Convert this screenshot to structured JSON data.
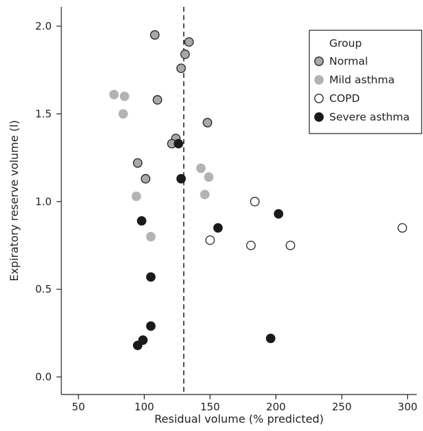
{
  "chart_data": {
    "type": "scatter",
    "title": "",
    "xlabel": "Residual volume (% predicted)",
    "ylabel": "Expiratory reserve volume (l)",
    "xlim": [
      37,
      307
    ],
    "ylim": [
      -0.1,
      2.11
    ],
    "xticks": [
      50,
      100,
      150,
      200,
      250,
      300
    ],
    "yticks": [
      0.0,
      0.5,
      1.0,
      1.5,
      2.0
    ],
    "x_tick_labels": [
      "50",
      "100",
      "150",
      "200",
      "250",
      "300"
    ],
    "y_tick_labels": [
      "0.0",
      "0.5",
      "1.0",
      "1.5",
      "2.0"
    ],
    "reference_line": {
      "axis": "x",
      "value": 130,
      "style": "dashed"
    },
    "legend_title": "Group",
    "legend_position": "top-right",
    "series": [
      {
        "name": "Normal",
        "fill": "#a8a8a8",
        "stroke": "#222222",
        "points": [
          {
            "x": 108,
            "y": 1.95
          },
          {
            "x": 134,
            "y": 1.91
          },
          {
            "x": 131,
            "y": 1.84
          },
          {
            "x": 128,
            "y": 1.76
          },
          {
            "x": 110,
            "y": 1.58
          },
          {
            "x": 148,
            "y": 1.45
          },
          {
            "x": 124,
            "y": 1.36
          },
          {
            "x": 121,
            "y": 1.33
          },
          {
            "x": 95,
            "y": 1.22
          },
          {
            "x": 101,
            "y": 1.13
          }
        ]
      },
      {
        "name": "Mild asthma",
        "fill": "#b3b3b3",
        "stroke": "#b3b3b3",
        "points": [
          {
            "x": 77,
            "y": 1.61
          },
          {
            "x": 85,
            "y": 1.6
          },
          {
            "x": 84,
            "y": 1.5
          },
          {
            "x": 143,
            "y": 1.19
          },
          {
            "x": 149,
            "y": 1.14
          },
          {
            "x": 146,
            "y": 1.04
          },
          {
            "x": 94,
            "y": 1.03
          },
          {
            "x": 105,
            "y": 0.8
          }
        ]
      },
      {
        "name": "COPD",
        "fill": "#ffffff",
        "stroke": "#222222",
        "points": [
          {
            "x": 184,
            "y": 1.0
          },
          {
            "x": 296,
            "y": 0.85
          },
          {
            "x": 150,
            "y": 0.78
          },
          {
            "x": 181,
            "y": 0.75
          },
          {
            "x": 211,
            "y": 0.75
          }
        ]
      },
      {
        "name": "Severe asthma",
        "fill": "#1a1a1a",
        "stroke": "#1a1a1a",
        "points": [
          {
            "x": 126,
            "y": 1.33
          },
          {
            "x": 128,
            "y": 1.13
          },
          {
            "x": 98,
            "y": 0.89
          },
          {
            "x": 156,
            "y": 0.85
          },
          {
            "x": 202,
            "y": 0.93
          },
          {
            "x": 105,
            "y": 0.57
          },
          {
            "x": 105,
            "y": 0.29
          },
          {
            "x": 99,
            "y": 0.21
          },
          {
            "x": 95,
            "y": 0.18
          },
          {
            "x": 196,
            "y": 0.22
          }
        ]
      }
    ]
  }
}
